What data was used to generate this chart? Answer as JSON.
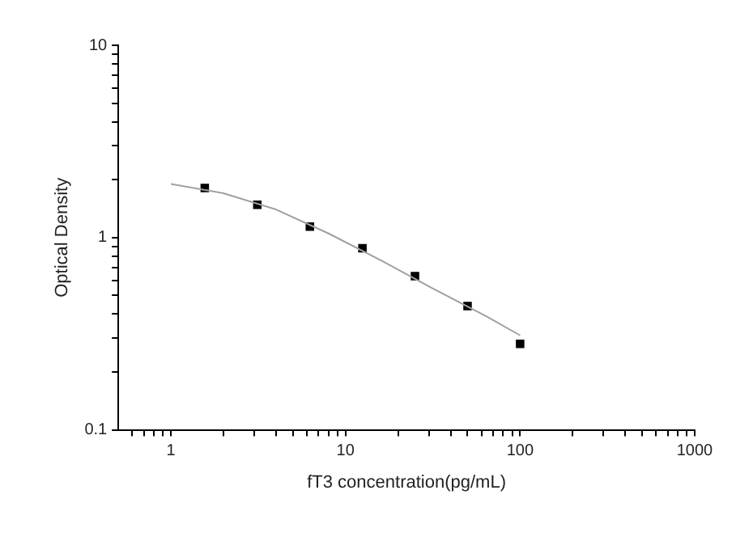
{
  "chart_data": {
    "type": "scatter",
    "xlabel": "fT3 concentration(pg/mL)",
    "ylabel": "Optical Density",
    "log": "xy",
    "grid": false,
    "legend": false,
    "marker": "square",
    "xlim": [
      0.5,
      1000
    ],
    "ylim": [
      0.1,
      10
    ],
    "xticks": [
      {
        "value": 0.6,
        "label": null
      },
      {
        "value": 0.7,
        "label": null
      },
      {
        "value": 0.8,
        "label": null
      },
      {
        "value": 0.9,
        "label": null
      },
      1,
      {
        "value": 2,
        "label": null
      },
      {
        "value": 3,
        "label": null
      },
      {
        "value": 4,
        "label": null
      },
      {
        "value": 5,
        "label": null
      },
      {
        "value": 6,
        "label": null
      },
      {
        "value": 7,
        "label": null
      },
      {
        "value": 8,
        "label": null
      },
      {
        "value": 9,
        "label": null
      },
      10,
      {
        "value": 20,
        "label": null
      },
      {
        "value": 30,
        "label": null
      },
      {
        "value": 40,
        "label": null
      },
      {
        "value": 50,
        "label": null
      },
      {
        "value": 60,
        "label": null
      },
      {
        "value": 70,
        "label": null
      },
      {
        "value": 80,
        "label": null
      },
      {
        "value": 90,
        "label": null
      },
      100,
      {
        "value": 200,
        "label": null
      },
      {
        "value": 300,
        "label": null
      },
      {
        "value": 400,
        "label": null
      },
      {
        "value": 500,
        "label": null
      },
      {
        "value": 600,
        "label": null
      },
      {
        "value": 700,
        "label": null
      },
      {
        "value": 800,
        "label": null
      },
      {
        "value": 900,
        "label": null
      },
      1000
    ],
    "yticks": [
      0.1,
      {
        "value": 0.2,
        "label": null
      },
      {
        "value": 0.3,
        "label": null
      },
      {
        "value": 0.4,
        "label": null
      },
      {
        "value": 0.5,
        "label": null
      },
      {
        "value": 0.6,
        "label": null
      },
      {
        "value": 0.7,
        "label": null
      },
      {
        "value": 0.8,
        "label": null
      },
      {
        "value": 0.9,
        "label": null
      },
      1,
      {
        "value": 2,
        "label": null
      },
      {
        "value": 3,
        "label": null
      },
      {
        "value": 4,
        "label": null
      },
      {
        "value": 5,
        "label": null
      },
      {
        "value": 6,
        "label": null
      },
      {
        "value": 7,
        "label": null
      },
      {
        "value": 8,
        "label": null
      },
      {
        "value": 9,
        "label": null
      },
      10
    ],
    "series": [
      {
        "type": "line",
        "marker": "none",
        "line_style": "solid",
        "color": "#a0a0a0",
        "x": [
          1,
          2,
          4,
          8,
          16,
          32,
          64,
          100
        ],
        "values": [
          1.9,
          1.7,
          1.4,
          1.05,
          0.76,
          0.54,
          0.39,
          0.31
        ]
      },
      {
        "type": "scatter",
        "color": "#000000",
        "x": [
          1.5625,
          3.125,
          6.25,
          12.5,
          25,
          50,
          100
        ],
        "values": [
          1.81,
          1.48,
          1.14,
          0.88,
          0.63,
          0.44,
          0.28
        ]
      }
    ]
  }
}
